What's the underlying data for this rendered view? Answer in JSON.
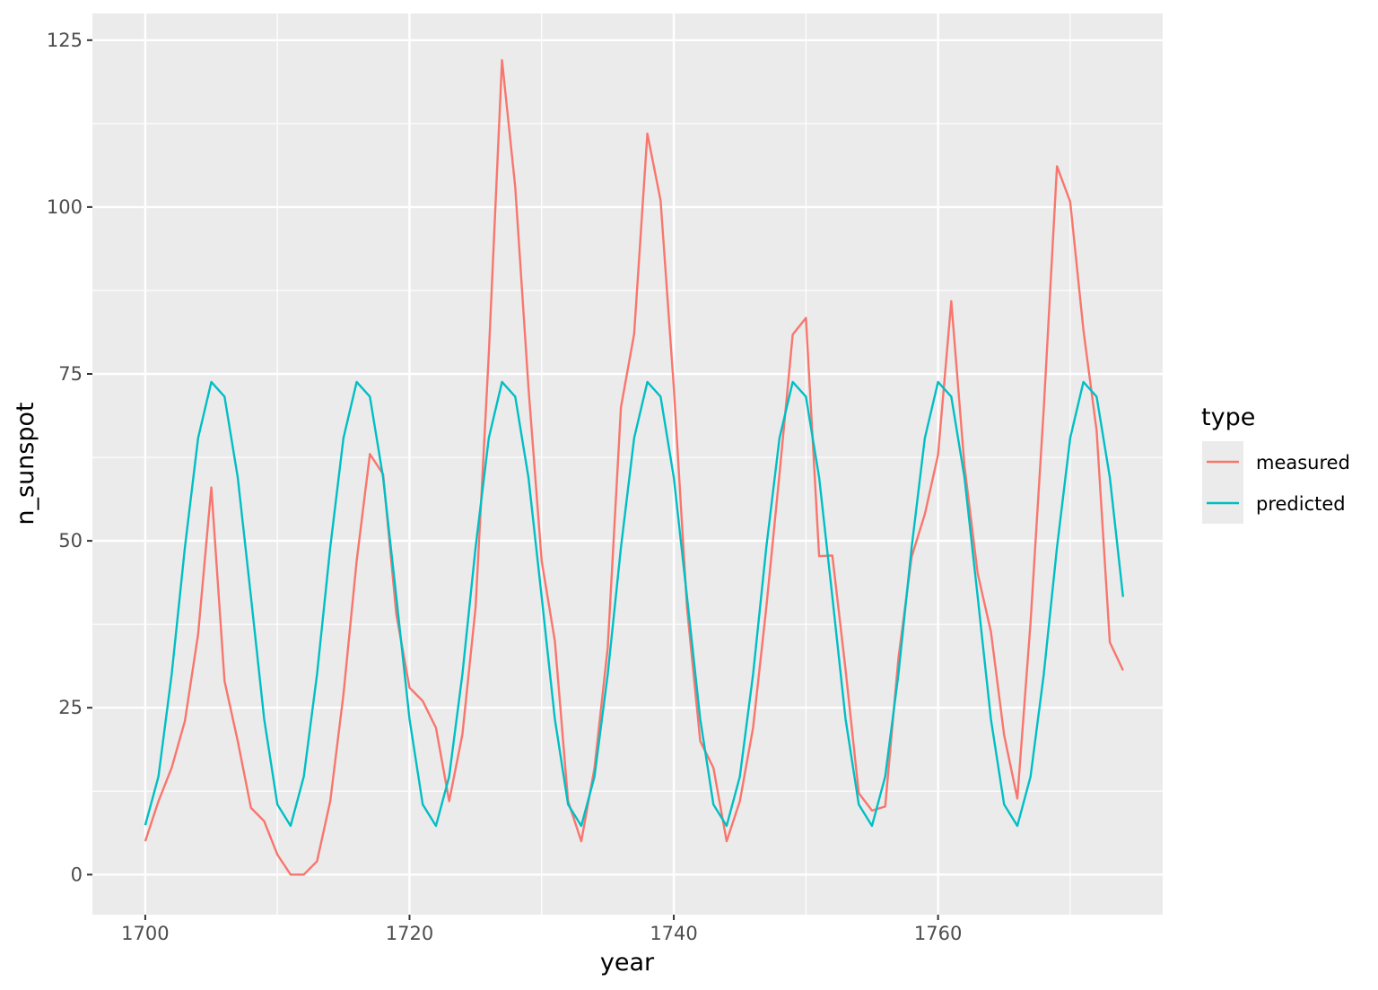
{
  "chart_data": {
    "type": "line",
    "title": "",
    "xlabel": "year",
    "ylabel": "n_sunspot",
    "xlim": [
      1696,
      1777
    ],
    "ylim": [
      -6,
      129
    ],
    "x_ticks": [
      1700,
      1720,
      1740,
      1760
    ],
    "x_tick_labels": [
      "1700",
      "1720",
      "1740",
      "1760"
    ],
    "x_minor_ticks": [
      1710,
      1730,
      1750,
      1770
    ],
    "y_ticks": [
      0,
      25,
      50,
      75,
      100,
      125
    ],
    "y_tick_labels": [
      "0",
      "25",
      "50",
      "75",
      "100",
      "125"
    ],
    "y_minor_ticks": [
      12.5,
      37.5,
      62.5,
      87.5,
      112.5
    ],
    "grid": true,
    "panel_background": "#ebebeb",
    "legend": {
      "title": "type",
      "position": "right"
    },
    "x": [
      1700,
      1701,
      1702,
      1703,
      1704,
      1705,
      1706,
      1707,
      1708,
      1709,
      1710,
      1711,
      1712,
      1713,
      1714,
      1715,
      1716,
      1717,
      1718,
      1719,
      1720,
      1721,
      1722,
      1723,
      1724,
      1725,
      1726,
      1727,
      1728,
      1729,
      1730,
      1731,
      1732,
      1733,
      1734,
      1735,
      1736,
      1737,
      1738,
      1739,
      1740,
      1741,
      1742,
      1743,
      1744,
      1745,
      1746,
      1747,
      1748,
      1749,
      1750,
      1751,
      1752,
      1753,
      1754,
      1755,
      1756,
      1757,
      1758,
      1759,
      1760,
      1761,
      1762,
      1763,
      1764,
      1765,
      1766,
      1767,
      1768,
      1769,
      1770,
      1771,
      1772,
      1773,
      1774
    ],
    "series": [
      {
        "name": "measured",
        "color": "#f8766d",
        "values": [
          5,
          11,
          16,
          23,
          36,
          58,
          29,
          20,
          10,
          8,
          3,
          0,
          0,
          2,
          11,
          27,
          47,
          63,
          60,
          39,
          28,
          26,
          22,
          11,
          21,
          40,
          78,
          122,
          103,
          73,
          47,
          35,
          11,
          5,
          16,
          34,
          70,
          81,
          111,
          101,
          73,
          40,
          20,
          16,
          5,
          11,
          22,
          40,
          60,
          80.9,
          83.4,
          47.7,
          47.8,
          30.7,
          12.2,
          9.6,
          10.2,
          32.4,
          47.6,
          54,
          62.9,
          85.9,
          61.2,
          45.1,
          36.4,
          20.9,
          11.4,
          37.8,
          69.8,
          106.1,
          100.8,
          81.6,
          66.5,
          34.8,
          30.6
        ]
      },
      {
        "name": "predicted",
        "color": "#00bfc4",
        "values": [
          7.4,
          14.7,
          30,
          49,
          65.4,
          73.8,
          71.6,
          59.5,
          41.6,
          23.3,
          10.5,
          7.3,
          14.7,
          30,
          49,
          65.4,
          73.8,
          71.6,
          59.5,
          41.6,
          23.3,
          10.5,
          7.3,
          14.7,
          30,
          49,
          65.4,
          73.8,
          71.6,
          59.5,
          41.6,
          23.3,
          10.5,
          7.3,
          14.7,
          30,
          49,
          65.4,
          73.8,
          71.6,
          59.5,
          41.6,
          23.3,
          10.5,
          7.3,
          14.7,
          30,
          49,
          65.4,
          73.8,
          71.6,
          59.5,
          41.6,
          23.3,
          10.5,
          7.3,
          14.7,
          30,
          49,
          65.4,
          73.8,
          71.6,
          59.5,
          41.6,
          23.3,
          10.5,
          7.3,
          14.7,
          30,
          49,
          65.4,
          73.8,
          71.6,
          59.5,
          41.6
        ]
      }
    ]
  }
}
